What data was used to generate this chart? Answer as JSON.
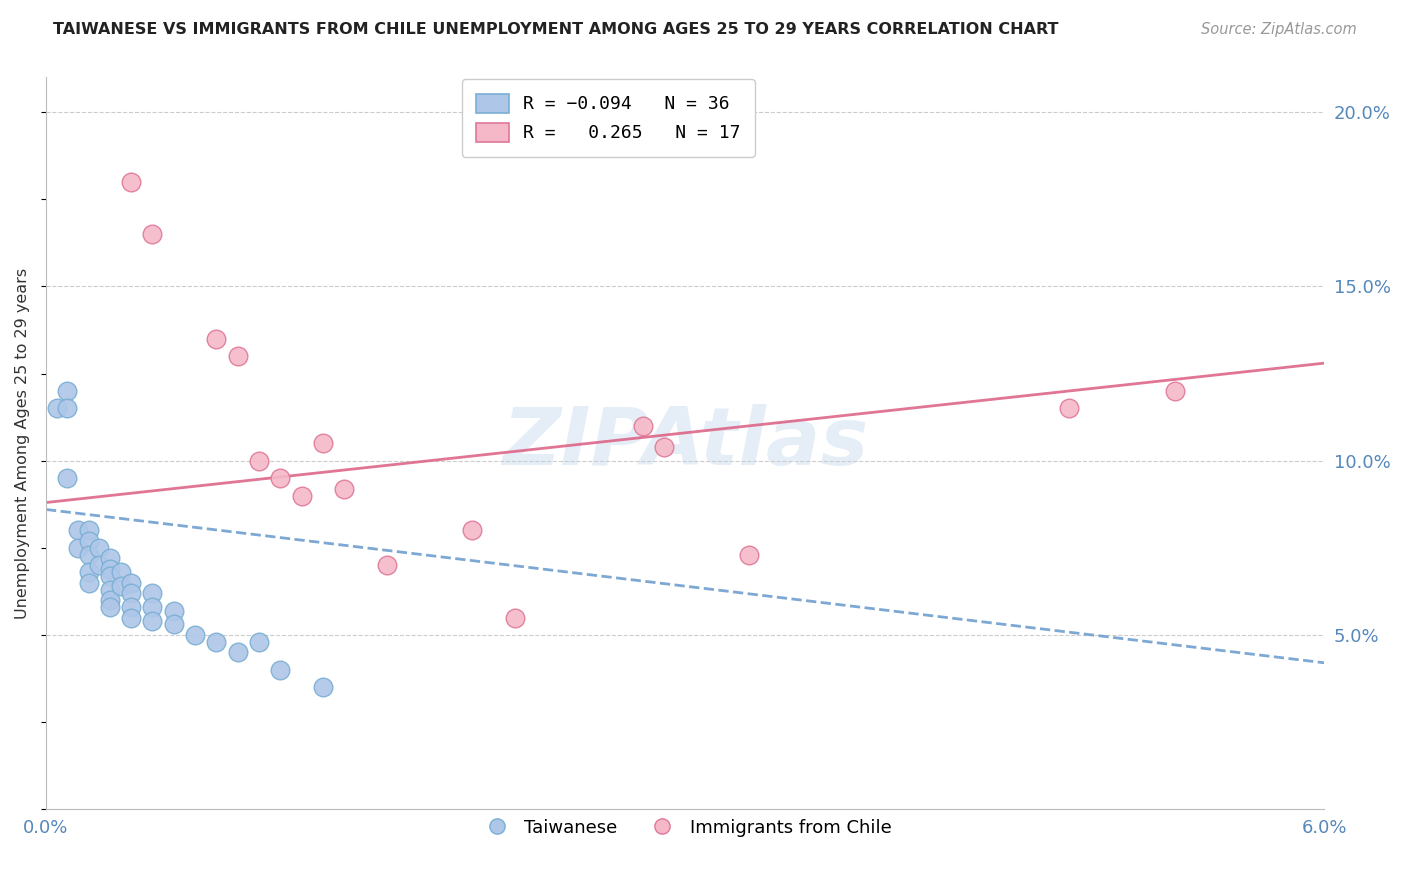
{
  "title": "TAIWANESE VS IMMIGRANTS FROM CHILE UNEMPLOYMENT AMONG AGES 25 TO 29 YEARS CORRELATION CHART",
  "source": "Source: ZipAtlas.com",
  "ylabel": "Unemployment Among Ages 25 to 29 years",
  "x_min": 0.0,
  "x_max": 0.06,
  "y_min": 0.0,
  "y_max": 0.21,
  "x_ticks": [
    0.0,
    0.01,
    0.02,
    0.03,
    0.04,
    0.05,
    0.06
  ],
  "y_ticks_right": [
    0.0,
    0.05,
    0.1,
    0.15,
    0.2
  ],
  "watermark": "ZIPAtlas",
  "taiwanese_color": "#aec6e8",
  "chile_color": "#f5b8c8",
  "taiwanese_edge": "#7aafd4",
  "chile_edge": "#e07898",
  "taiwanese_line_color": "#6699cc",
  "chile_line_color": "#dd6688",
  "taiwanese_scatter_x": [
    0.0005,
    0.001,
    0.001,
    0.001,
    0.0015,
    0.0015,
    0.002,
    0.002,
    0.002,
    0.002,
    0.002,
    0.0025,
    0.0025,
    0.003,
    0.003,
    0.003,
    0.003,
    0.003,
    0.003,
    0.0035,
    0.0035,
    0.004,
    0.004,
    0.004,
    0.004,
    0.005,
    0.005,
    0.005,
    0.006,
    0.006,
    0.007,
    0.008,
    0.009,
    0.01,
    0.011,
    0.013
  ],
  "taiwanese_scatter_y": [
    0.115,
    0.12,
    0.095,
    0.115,
    0.08,
    0.075,
    0.08,
    0.077,
    0.073,
    0.068,
    0.065,
    0.075,
    0.07,
    0.072,
    0.069,
    0.067,
    0.063,
    0.06,
    0.058,
    0.068,
    0.064,
    0.065,
    0.062,
    0.058,
    0.055,
    0.062,
    0.058,
    0.054,
    0.057,
    0.053,
    0.05,
    0.048,
    0.045,
    0.048,
    0.04,
    0.035
  ],
  "chile_scatter_x": [
    0.004,
    0.005,
    0.008,
    0.009,
    0.01,
    0.011,
    0.012,
    0.013,
    0.014,
    0.016,
    0.02,
    0.022,
    0.028,
    0.029,
    0.033,
    0.048,
    0.053
  ],
  "chile_scatter_y": [
    0.18,
    0.165,
    0.135,
    0.13,
    0.1,
    0.095,
    0.09,
    0.105,
    0.092,
    0.07,
    0.08,
    0.055,
    0.11,
    0.104,
    0.073,
    0.115,
    0.12
  ],
  "taiwanese_trend_x": [
    0.0,
    0.06
  ],
  "taiwanese_trend_y": [
    0.086,
    0.042
  ],
  "chile_trend_x": [
    0.0,
    0.06
  ],
  "chile_trend_y": [
    0.088,
    0.128
  ],
  "background_color": "#ffffff",
  "grid_color": "#cccccc"
}
